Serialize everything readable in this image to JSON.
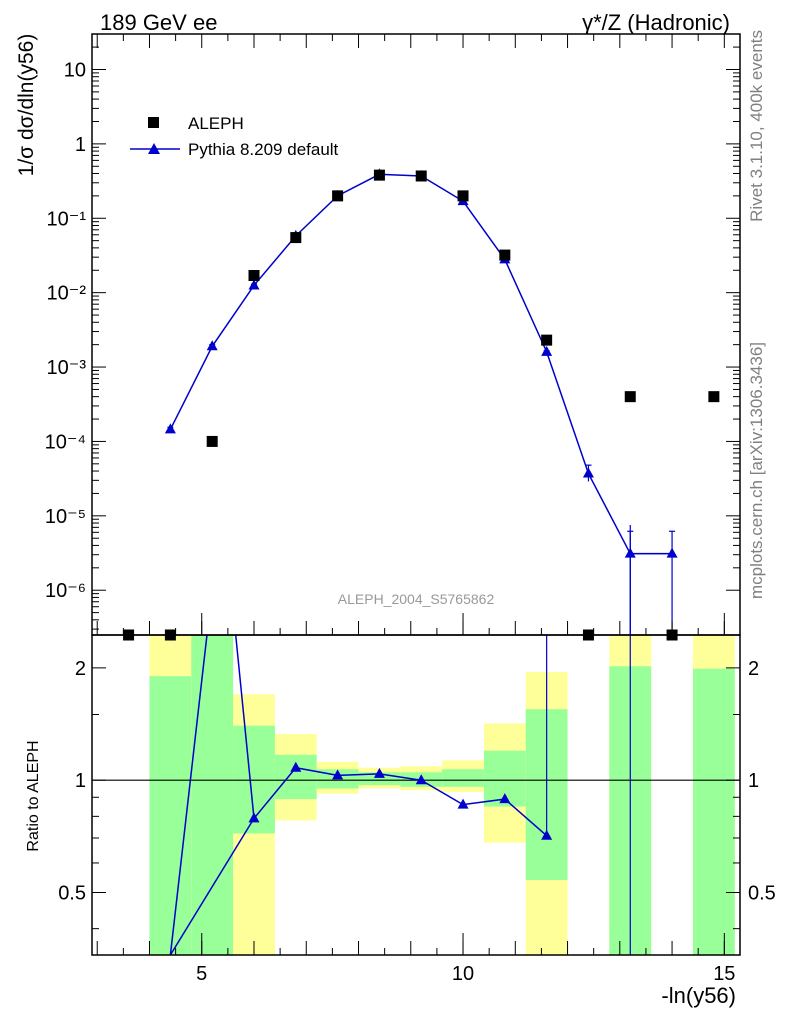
{
  "header": {
    "energy_label": "189 GeV ee",
    "process_label_main": "γ*/Z (Hadronic)"
  },
  "side_text": {
    "rivet": "Rivet 3.1.10,  400k events",
    "mcplots": "mcplots.cern.ch [arXiv:1306.3436]"
  },
  "analysis_id": "ALEPH_2004_S5765862",
  "colors": {
    "mc": "#0000cc",
    "band_inner": "#99ff99",
    "band_outer": "#ffff99",
    "data": "#000000",
    "side_text": "#808080"
  },
  "chart_data": [
    {
      "type": "scatter",
      "panel": "main",
      "ylabel": "1/σ  dσ/dln(y56)",
      "xlabel": "-ln(y56)",
      "xlim": [
        2.9,
        15.3
      ],
      "ylim": [
        2.5e-07,
        30
      ],
      "y_scale": "log",
      "y_tick_labels": [
        "10",
        "1",
        "10⁻¹",
        "10⁻²",
        "10⁻³",
        "10⁻⁴",
        "10⁻⁵",
        "10⁻⁶"
      ],
      "legend_position": "top-left",
      "series": [
        {
          "name": "ALEPH",
          "marker": "square",
          "x": [
            3.6,
            4.4,
            5.2,
            6.0,
            6.8,
            7.6,
            8.4,
            9.2,
            10.0,
            10.8,
            11.6,
            12.4,
            13.2,
            14.0,
            14.8
          ],
          "y": [
            0,
            0,
            0.0001,
            0.017,
            0.055,
            0.2,
            0.38,
            0.37,
            0.2,
            0.032,
            0.0023,
            0,
            0.0004,
            0,
            0.0004
          ]
        },
        {
          "name": "Pythia 8.209 default",
          "marker": "triangle",
          "x": [
            4.4,
            5.2,
            6.0,
            6.8,
            7.6,
            8.4,
            9.2,
            10.0,
            10.8,
            11.6,
            12.4,
            13.2,
            14.0
          ],
          "y": [
            0.000145,
            0.0019,
            0.0125,
            0.058,
            0.2,
            0.39,
            0.37,
            0.17,
            0.028,
            0.0016,
            3.7e-05,
            3.1e-06,
            3.1e-06
          ],
          "err_up": [
            0.000155,
            0.002,
            0.013,
            0.06,
            0.205,
            0.395,
            0.375,
            0.175,
            0.029,
            0.00165,
            4.8e-05,
            6.2e-06,
            6.2e-06
          ],
          "err_down": [
            0.000135,
            0.0018,
            0.012,
            0.056,
            0.195,
            0.385,
            0.365,
            0.165,
            0.027,
            0.00155,
            2.9e-05,
            1e-07,
            1e-07
          ]
        }
      ]
    },
    {
      "type": "line",
      "panel": "ratio",
      "ylabel": "Ratio to ALEPH",
      "xlabel": "-ln(y56)",
      "xlim": [
        2.9,
        15.3
      ],
      "ylim": [
        0.34,
        2.45
      ],
      "y_scale": "log",
      "x_tick_labels": [
        "5",
        "10",
        "15"
      ],
      "y_tick_labels": [
        "0.5",
        "1",
        "2"
      ],
      "reference_line": 1,
      "bands": [
        {
          "x0": 4.0,
          "x1": 4.8,
          "inner": [
            0.34,
            1.9
          ],
          "outer": [
            0.34,
            2.45
          ]
        },
        {
          "x0": 4.8,
          "x1": 5.6,
          "inner": [
            0.34,
            2.45
          ],
          "outer": [
            0.34,
            2.45
          ]
        },
        {
          "x0": 5.6,
          "x1": 6.4,
          "inner": [
            0.72,
            1.4
          ],
          "outer": [
            0.34,
            1.7
          ]
        },
        {
          "x0": 6.4,
          "x1": 7.2,
          "inner": [
            0.89,
            1.17
          ],
          "outer": [
            0.78,
            1.33
          ]
        },
        {
          "x0": 7.2,
          "x1": 8.0,
          "inner": [
            0.95,
            1.07
          ],
          "outer": [
            0.92,
            1.12
          ]
        },
        {
          "x0": 8.0,
          "x1": 8.8,
          "inner": [
            0.97,
            1.05
          ],
          "outer": [
            0.95,
            1.08
          ]
        },
        {
          "x0": 8.8,
          "x1": 9.6,
          "inner": [
            0.96,
            1.05
          ],
          "outer": [
            0.94,
            1.09
          ]
        },
        {
          "x0": 9.6,
          "x1": 10.4,
          "inner": [
            0.96,
            1.07
          ],
          "outer": [
            0.93,
            1.13
          ]
        },
        {
          "x0": 10.4,
          "x1": 11.2,
          "inner": [
            0.85,
            1.2
          ],
          "outer": [
            0.68,
            1.42
          ]
        },
        {
          "x0": 11.2,
          "x1": 12.0,
          "inner": [
            0.54,
            1.55
          ],
          "outer": [
            0.34,
            1.95
          ]
        },
        {
          "x0": 12.8,
          "x1": 13.6,
          "inner": [
            0.34,
            2.02
          ],
          "outer": [
            0.34,
            2.45
          ]
        },
        {
          "x0": 14.4,
          "x1": 15.2,
          "inner": [
            0.34,
            1.99
          ],
          "outer": [
            0.34,
            2.45
          ]
        }
      ],
      "series": [
        {
          "name": "Pythia 8.209 default",
          "x": [
            4.4,
            6.0,
            6.8,
            7.6,
            8.4,
            9.2,
            10.0,
            10.8,
            11.6
          ],
          "y": [
            0.2,
            0.79,
            1.08,
            1.03,
            1.04,
            1.0,
            0.86,
            0.89,
            0.71
          ]
        }
      ]
    }
  ]
}
